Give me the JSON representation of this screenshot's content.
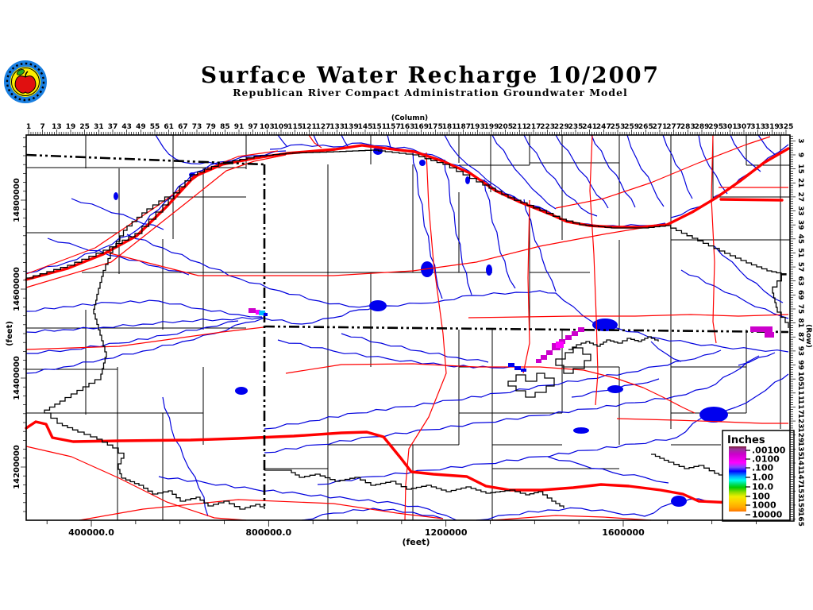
{
  "header": {
    "title": "Surface Water Recharge 10/2007",
    "subtitle": "Republican River Compact Administration Groundwater Model",
    "logo": "rrca-apple-seal-logo"
  },
  "axes": {
    "column": {
      "label": "(Column)",
      "ticks": [
        1,
        7,
        13,
        19,
        25,
        31,
        37,
        43,
        49,
        55,
        61,
        67,
        73,
        79,
        85,
        91,
        97,
        103,
        109,
        115,
        121,
        127,
        133,
        139,
        145,
        151,
        157,
        163,
        169,
        175,
        181,
        187,
        193,
        199,
        205,
        211,
        217,
        223,
        229,
        235,
        241,
        247,
        253,
        259,
        265,
        271,
        277,
        283,
        289,
        295,
        301,
        307,
        313,
        319,
        325
      ]
    },
    "row": {
      "label": "(Row)",
      "ticks": [
        3,
        9,
        15,
        21,
        27,
        33,
        39,
        45,
        51,
        57,
        63,
        69,
        75,
        81,
        87,
        93,
        99,
        105,
        111,
        117,
        123,
        129,
        135,
        141,
        147,
        153,
        159,
        165
      ]
    },
    "y_feet": {
      "label": "(feet)",
      "ticks": [
        "14800000",
        "14600000",
        "14400000",
        "14200000"
      ]
    },
    "x_feet": {
      "label": "(feet)",
      "ticks": [
        "400000.0",
        "800000.0",
        "1200000",
        "1600000"
      ]
    }
  },
  "legend": {
    "title": "Inches",
    "entries": [
      ".00100",
      ".0100",
      ".100",
      "1.00",
      "10.0",
      "100",
      "1000",
      "10000"
    ]
  },
  "map": {
    "colors": {
      "river_blue": "#0000dd",
      "water_fill": "#0000ee",
      "road_red": "#ff0000",
      "boundary_black": "#000000",
      "state_border_black": "#000000",
      "cell_magenta": "#cc00cc",
      "cell_pink": "#ff00ff",
      "cell_cyan": "#00bbff",
      "cell_blue": "#0000ee"
    },
    "features": [
      "state-borders",
      "county-lines",
      "model-grid-boundary",
      "rivers-streams",
      "reservoirs",
      "highways",
      "recharge-cells"
    ]
  }
}
